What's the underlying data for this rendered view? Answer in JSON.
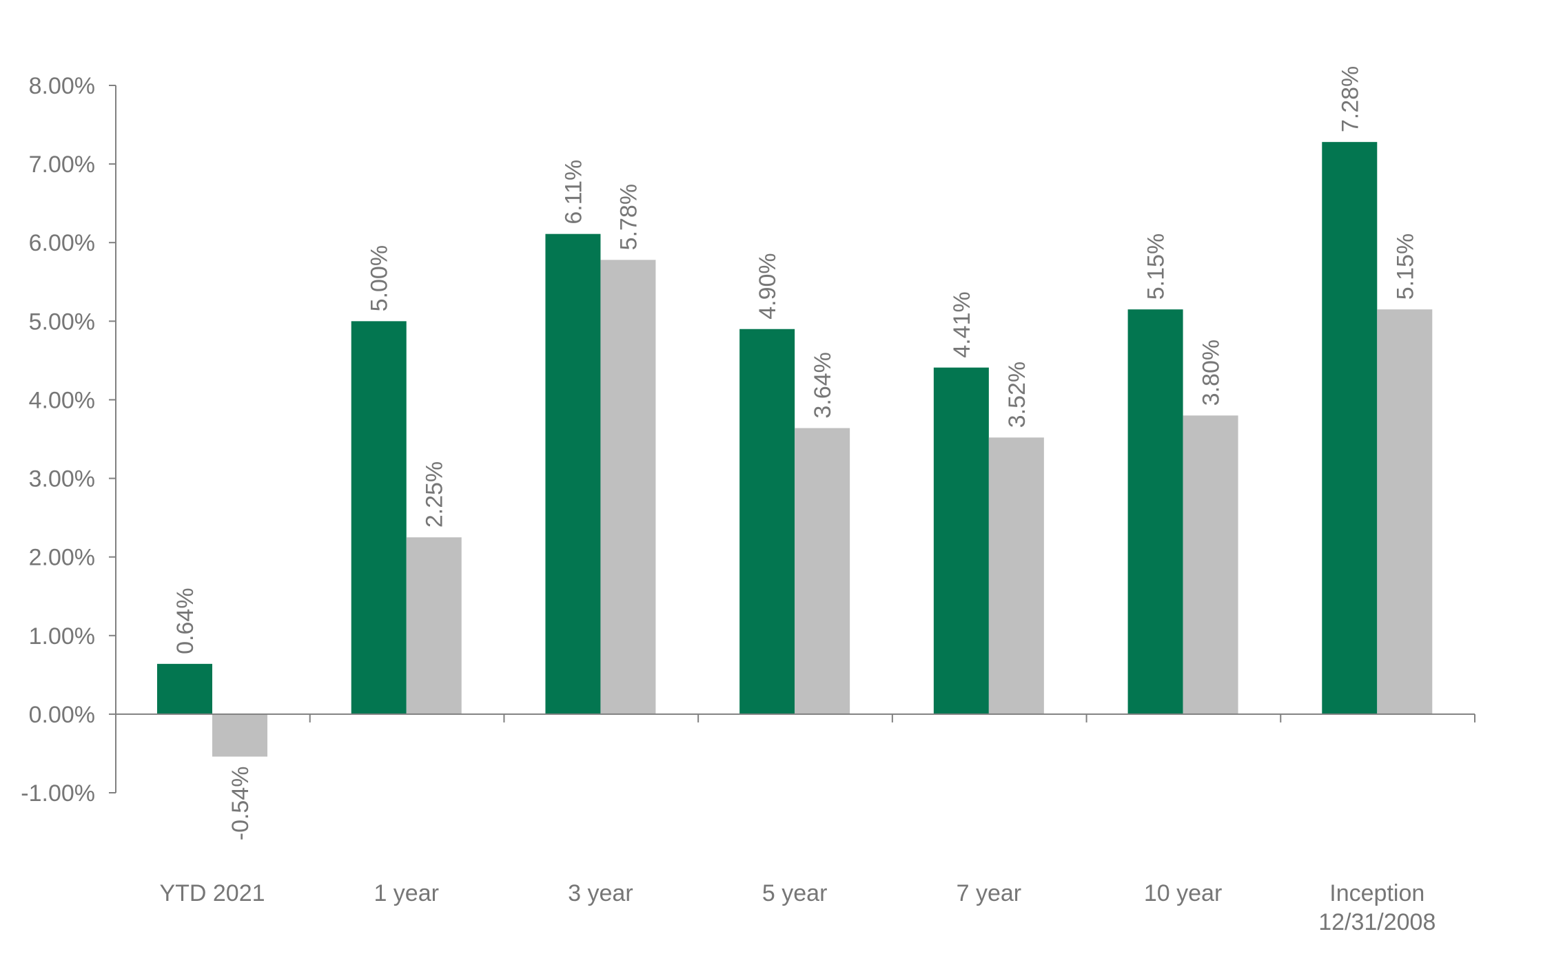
{
  "chart_data": {
    "type": "bar",
    "title": "",
    "xlabel": "",
    "ylabel": "",
    "categories": [
      [
        "YTD 2021"
      ],
      [
        "1 year"
      ],
      [
        "3 year"
      ],
      [
        "5 year"
      ],
      [
        "7 year"
      ],
      [
        "10 year"
      ],
      [
        "Inception",
        "12/31/2008"
      ]
    ],
    "series": [
      {
        "color": "#037650",
        "values": [
          0.64,
          5.0,
          6.11,
          4.9,
          4.41,
          5.15,
          7.28
        ],
        "labels": [
          "0.64%",
          "5.00%",
          "6.11%",
          "4.90%",
          "4.41%",
          "5.15%",
          "7.28%"
        ]
      },
      {
        "color": "#bfbfbf",
        "values": [
          -0.54,
          2.25,
          5.78,
          3.64,
          3.52,
          3.8,
          5.15
        ],
        "labels": [
          "-0.54%",
          "2.25%",
          "5.78%",
          "3.64%",
          "3.52%",
          "3.80%",
          "5.15%"
        ]
      }
    ],
    "ylim": [
      -1.0,
      8.0
    ],
    "yticks": [
      "8.00%",
      "7.00%",
      "6.00%",
      "5.00%",
      "4.00%",
      "3.00%",
      "2.00%",
      "1.00%",
      "0.00%",
      "-1.00%"
    ],
    "ytick_values": [
      8,
      7,
      6,
      5,
      4,
      3,
      2,
      1,
      0,
      -1
    ],
    "grid": false,
    "legend": "none",
    "axis_color": "#808080",
    "text_color": "#767676"
  }
}
